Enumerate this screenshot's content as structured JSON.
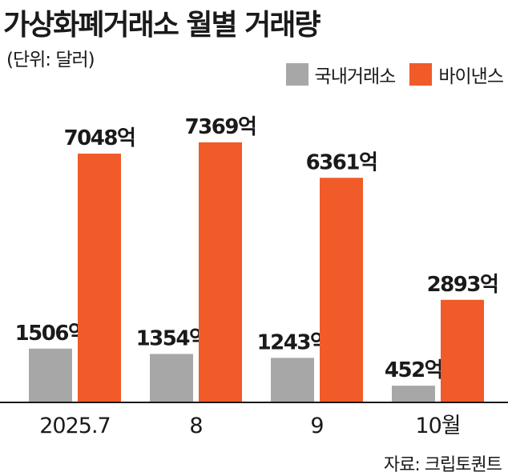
{
  "title": "가상화폐거래소 월별 거래량",
  "unit_note": "(단위: 달러)",
  "source_note": "자료: 크립토퀀트",
  "colors": {
    "domestic": "#a7a7a7",
    "binance": "#f15a29"
  },
  "chart_data": {
    "type": "bar",
    "categories": [
      "2025.7",
      "8",
      "9",
      "10월"
    ],
    "series": [
      {
        "name": "국내거래소",
        "values": [
          1506,
          1354,
          1243,
          452
        ],
        "labels": [
          "1506억",
          "1354억",
          "1243억",
          "452억"
        ]
      },
      {
        "name": "바이낸스",
        "values": [
          7048,
          7369,
          6361,
          2893
        ],
        "labels": [
          "7048억",
          "7369억",
          "6361억",
          "2893억"
        ]
      }
    ],
    "ylim": [
      0,
      8800
    ],
    "legend": "top-right",
    "grid": false
  }
}
